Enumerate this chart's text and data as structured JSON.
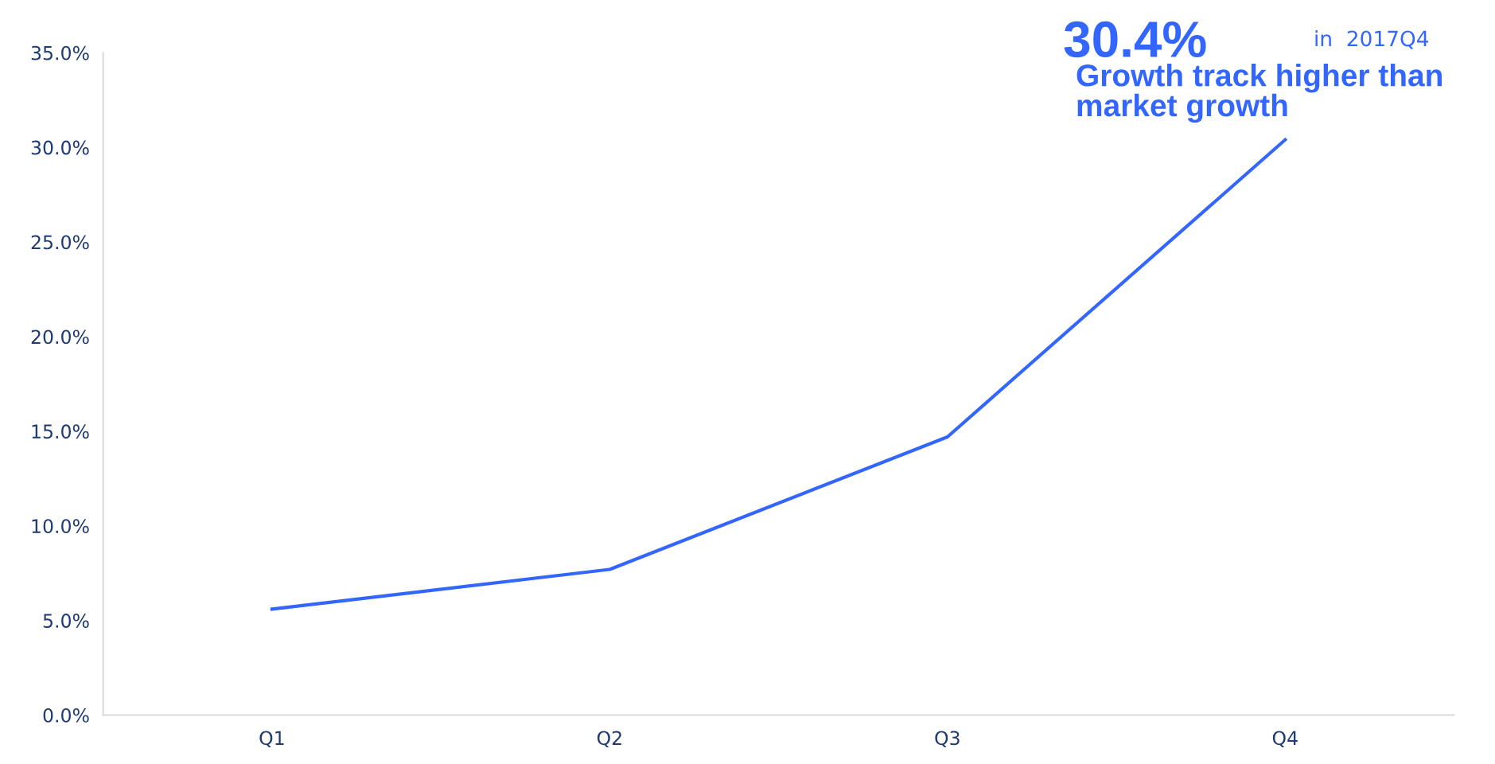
{
  "chart_data": {
    "type": "line",
    "categories": [
      "Q1",
      "Q2",
      "Q3",
      "Q4"
    ],
    "series": [
      {
        "color": "#3366ff",
        "values": [
          5.6,
          7.7,
          14.7,
          30.4
        ]
      }
    ],
    "ylim": [
      0,
      35
    ],
    "yticks": [
      {
        "value": 0,
        "label": "0.0%"
      },
      {
        "value": 5,
        "label": "5.0%"
      },
      {
        "value": 10,
        "label": "10.0%"
      },
      {
        "value": 15,
        "label": "15.0%"
      },
      {
        "value": 20,
        "label": "20.0%"
      },
      {
        "value": 25,
        "label": "25.0%"
      },
      {
        "value": 30,
        "label": "30.0%"
      },
      {
        "value": 35,
        "label": "35.0%"
      }
    ],
    "grid": false,
    "legend": false,
    "marker": "none",
    "line_style": "solid",
    "annotations": [
      {
        "text": "30.4%",
        "x": "Q4",
        "y": 30.4
      },
      "in  2017Q4",
      "Growth track higher than market growth"
    ]
  }
}
